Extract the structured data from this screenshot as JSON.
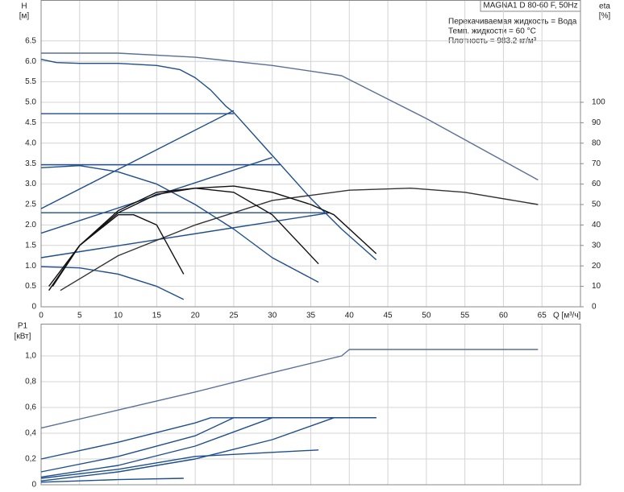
{
  "chart_data": [
    {
      "type": "line",
      "title": "MAGNA1 D 80-60 F, 50Hz",
      "info": [
        "Перекачиваемая жидкость = Вода",
        "Темп. жидкости = 60 °C",
        "Плотность = 983.2 кг/м³"
      ],
      "ylabel_name": "H",
      "ylabel_unit": "[м]",
      "y2label_name": "eta",
      "y2label_unit": "[%]",
      "xlabel": "Q [м³/ч]",
      "xlim": [
        0,
        70
      ],
      "xticks": [
        0,
        5,
        10,
        15,
        20,
        25,
        30,
        35,
        40,
        45,
        50,
        55,
        60,
        65
      ],
      "ylim": [
        0,
        7.5
      ],
      "yticks": [
        0,
        0.5,
        {
          "value": 1,
          "label": "1.0"
        },
        1.5,
        {
          "value": 2,
          "label": "2.0"
        },
        2.5,
        {
          "value": 3,
          "label": "3.0"
        },
        3.5,
        {
          "value": 4,
          "label": "4.0"
        },
        4.5,
        {
          "value": 5,
          "label": "5.0"
        },
        5.5,
        {
          "value": 6,
          "label": "6.0"
        },
        6.5
      ],
      "y2lim": [
        0,
        150
      ],
      "y2ticks": [
        0,
        10,
        20,
        30,
        40,
        50,
        60,
        70,
        80,
        90,
        100
      ],
      "grid": true,
      "series": [
        {
          "color": "#5a7099",
          "x": [
            0,
            10,
            20,
            30,
            39,
            50,
            64.5
          ],
          "values": [
            6.2,
            6.2,
            6.1,
            5.9,
            5.65,
            4.6,
            3.1
          ]
        },
        {
          "color": "#1f4e8c",
          "x": [
            0,
            2,
            5,
            10,
            15,
            18,
            20,
            22,
            24,
            25,
            30,
            35,
            39,
            43.5
          ],
          "values": [
            6.05,
            5.97,
            5.95,
            5.95,
            5.9,
            5.8,
            5.6,
            5.3,
            4.9,
            4.75,
            3.7,
            2.65,
            1.9,
            1.15
          ]
        },
        {
          "color": "#1f4e8c",
          "x": [
            0,
            25
          ],
          "values": [
            4.72,
            4.72
          ]
        },
        {
          "color": "#1f4e8c",
          "x": [
            0,
            31
          ],
          "values": [
            3.47,
            3.47
          ]
        },
        {
          "color": "#1f4e8c",
          "x": [
            0,
            37.5
          ],
          "values": [
            2.3,
            2.3
          ]
        },
        {
          "color": "#1f4e8c",
          "x": [
            0,
            25
          ],
          "values": [
            2.4,
            4.8
          ]
        },
        {
          "color": "#1f4e8c",
          "x": [
            0,
            30
          ],
          "values": [
            1.8,
            3.65
          ]
        },
        {
          "color": "#1f4e8c",
          "x": [
            0,
            37.5
          ],
          "values": [
            1.2,
            2.3
          ]
        },
        {
          "color": "#1f4e8c",
          "x": [
            0,
            5,
            10,
            15,
            20,
            25,
            30,
            36
          ],
          "values": [
            3.4,
            3.45,
            3.3,
            3.0,
            2.5,
            1.9,
            1.2,
            0.6
          ]
        },
        {
          "color": "#1f4e8c",
          "x": [
            0,
            5,
            10,
            15,
            18.5
          ],
          "values": [
            0.98,
            0.95,
            0.8,
            0.5,
            0.18
          ]
        },
        {
          "color": "#333333",
          "axis": "y2",
          "x": [
            2.5,
            10,
            20,
            30,
            40,
            48,
            55,
            64.5
          ],
          "values": [
            8,
            25,
            40,
            52,
            57,
            58,
            56,
            50
          ]
        },
        {
          "color": "#111111",
          "axis": "y2",
          "x": [
            1,
            5,
            10,
            15,
            20,
            25,
            30,
            35,
            38,
            43.5
          ],
          "values": [
            10,
            30,
            46,
            55,
            58,
            59,
            56,
            50,
            45,
            26
          ]
        },
        {
          "color": "#111111",
          "axis": "y2",
          "x": [
            1.5,
            5,
            10,
            15,
            20,
            25,
            30,
            36
          ],
          "values": [
            10,
            30,
            47,
            56,
            58,
            56,
            45,
            21
          ]
        },
        {
          "color": "#111111",
          "axis": "y2",
          "x": [
            1,
            5,
            10,
            12,
            15,
            18.5
          ],
          "values": [
            8,
            30,
            45,
            45,
            40,
            16
          ]
        }
      ]
    },
    {
      "type": "line",
      "ylabel_name": "P1",
      "ylabel_unit": "[кВт]",
      "xlim": [
        0,
        70
      ],
      "ylim": [
        0,
        1.25
      ],
      "yticks": [
        0,
        {
          "value": 0.2,
          "label": "0,2"
        },
        {
          "value": 0.4,
          "label": "0,4"
        },
        {
          "value": 0.6,
          "label": "0,6"
        },
        {
          "value": 0.8,
          "label": "0,8"
        },
        {
          "value": 1,
          "label": "1,0"
        }
      ],
      "grid": true,
      "series": [
        {
          "color": "#5a7099",
          "x": [
            0,
            10,
            20,
            30,
            39,
            40,
            64.5
          ],
          "values": [
            0.44,
            0.58,
            0.72,
            0.87,
            1.0,
            1.05,
            1.05
          ]
        },
        {
          "color": "#1f4e8c",
          "x": [
            0,
            10,
            20,
            22,
            43.5
          ],
          "values": [
            0.2,
            0.33,
            0.48,
            0.52,
            0.52
          ]
        },
        {
          "color": "#1f4e8c",
          "x": [
            0,
            10,
            20,
            25,
            43.5
          ],
          "values": [
            0.1,
            0.22,
            0.38,
            0.52,
            0.52
          ]
        },
        {
          "color": "#1f4e8c",
          "x": [
            0,
            10,
            20,
            30,
            43.5
          ],
          "values": [
            0.06,
            0.15,
            0.3,
            0.52,
            0.52
          ]
        },
        {
          "color": "#1f4e8c",
          "x": [
            0,
            10,
            20,
            30,
            38,
            43.5
          ],
          "values": [
            0.03,
            0.1,
            0.2,
            0.35,
            0.52,
            0.52
          ]
        },
        {
          "color": "#1f4e8c",
          "x": [
            0,
            10,
            20,
            36
          ],
          "values": [
            0.05,
            0.12,
            0.22,
            0.27
          ]
        },
        {
          "color": "#1f4e8c",
          "x": [
            0,
            10,
            18.5
          ],
          "values": [
            0.02,
            0.04,
            0.05
          ]
        }
      ]
    }
  ]
}
